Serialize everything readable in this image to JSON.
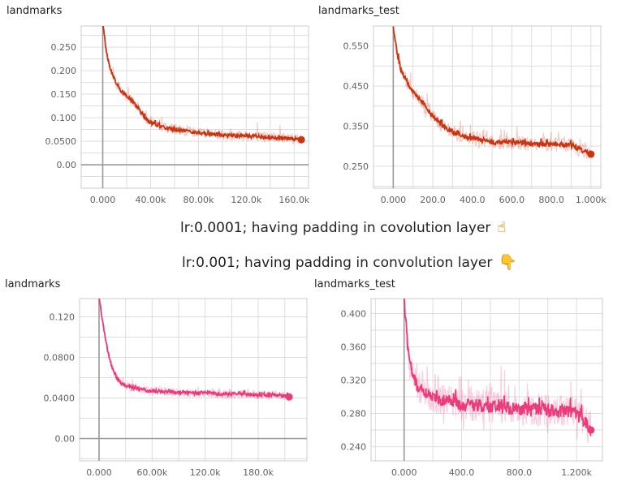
{
  "captions": {
    "top": "lr:0.0001; having padding in covolution layer",
    "bottom": "lr:0.001; having padding in convolution layer",
    "top_icon": "hand-pointing-up-icon",
    "bottom_icon": "hand-pointing-down-icon"
  },
  "colors": {
    "top_series": "#cc3311",
    "bottom_series": "#ec3a7b"
  },
  "chart_data": [
    {
      "type": "line",
      "title": "landmarks",
      "xticks": [
        "0.000",
        "40.00k",
        "80.00k",
        "120.0k",
        "160.0k"
      ],
      "xtick_values": [
        0,
        40000,
        80000,
        120000,
        160000
      ],
      "yticks": [
        "0.00",
        "0.0500",
        "0.100",
        "0.150",
        "0.200",
        "0.250"
      ],
      "ytick_values": [
        0,
        0.05,
        0.1,
        0.15,
        0.2,
        0.25
      ],
      "xlim": [
        -18000,
        172000
      ],
      "ylim": [
        -0.05,
        0.295
      ],
      "series": [
        {
          "x": [
            0,
            3000,
            6000,
            10000,
            15000,
            20000,
            25000,
            30000,
            35000,
            40000,
            45000,
            50000,
            55000,
            60000,
            70000,
            80000,
            90000,
            100000,
            110000,
            120000,
            130000,
            140000,
            150000,
            160000,
            166000
          ],
          "y": [
            0.3,
            0.24,
            0.205,
            0.18,
            0.158,
            0.146,
            0.135,
            0.12,
            0.1,
            0.09,
            0.085,
            0.08,
            0.078,
            0.075,
            0.072,
            0.068,
            0.065,
            0.063,
            0.062,
            0.061,
            0.06,
            0.058,
            0.057,
            0.055,
            0.053
          ]
        }
      ]
    },
    {
      "type": "line",
      "title": "landmarks_test",
      "xticks": [
        "0.000",
        "200.0",
        "400.0",
        "600.0",
        "800.0",
        "1.000k"
      ],
      "xtick_values": [
        0,
        200,
        400,
        600,
        800,
        1000
      ],
      "yticks": [
        "0.250",
        "0.350",
        "0.450",
        "0.550"
      ],
      "ytick_values": [
        0.25,
        0.35,
        0.45,
        0.55
      ],
      "xlim": [
        -100,
        1050
      ],
      "ylim": [
        0.195,
        0.6
      ],
      "series": [
        {
          "x": [
            0,
            20,
            40,
            60,
            80,
            100,
            150,
            200,
            250,
            300,
            350,
            400,
            450,
            500,
            600,
            700,
            800,
            900,
            1000
          ],
          "y": [
            0.6,
            0.53,
            0.49,
            0.47,
            0.45,
            0.435,
            0.41,
            0.375,
            0.35,
            0.335,
            0.325,
            0.32,
            0.315,
            0.31,
            0.31,
            0.305,
            0.305,
            0.302,
            0.28
          ]
        }
      ]
    },
    {
      "type": "line",
      "title": "landmarks",
      "xticks": [
        "0.000",
        "60.00k",
        "120.0k",
        "180.0k"
      ],
      "xtick_values": [
        0,
        60000,
        120000,
        180000
      ],
      "yticks": [
        "0.00",
        "0.0400",
        "0.0800",
        "0.120"
      ],
      "ytick_values": [
        0,
        0.04,
        0.08,
        0.12
      ],
      "xlim": [
        -22000,
        235000
      ],
      "ylim": [
        -0.022,
        0.138
      ],
      "series": [
        {
          "x": [
            0,
            5000,
            10000,
            15000,
            20000,
            25000,
            30000,
            40000,
            50000,
            60000,
            80000,
            100000,
            120000,
            140000,
            160000,
            180000,
            200000,
            215000
          ],
          "y": [
            0.14,
            0.11,
            0.085,
            0.07,
            0.06,
            0.055,
            0.052,
            0.05,
            0.048,
            0.047,
            0.046,
            0.045,
            0.045,
            0.044,
            0.044,
            0.043,
            0.043,
            0.041
          ]
        }
      ]
    },
    {
      "type": "line",
      "title": "landmarks_test",
      "xticks": [
        "0.000",
        "400.0",
        "800.0",
        "1.200k"
      ],
      "xtick_values": [
        0,
        400,
        800,
        1200
      ],
      "yticks": [
        "0.240",
        "0.280",
        "0.320",
        "0.360",
        "0.400"
      ],
      "ytick_values": [
        0.24,
        0.28,
        0.32,
        0.36,
        0.4
      ],
      "xlim": [
        -230,
        1380
      ],
      "ylim": [
        0.223,
        0.418
      ],
      "series": [
        {
          "x": [
            0,
            20,
            40,
            60,
            80,
            100,
            150,
            200,
            300,
            400,
            500,
            600,
            700,
            800,
            900,
            1000,
            1100,
            1200,
            1300
          ],
          "y": [
            0.42,
            0.37,
            0.34,
            0.325,
            0.315,
            0.31,
            0.305,
            0.3,
            0.295,
            0.29,
            0.29,
            0.288,
            0.287,
            0.285,
            0.285,
            0.284,
            0.283,
            0.282,
            0.26
          ]
        }
      ]
    }
  ]
}
